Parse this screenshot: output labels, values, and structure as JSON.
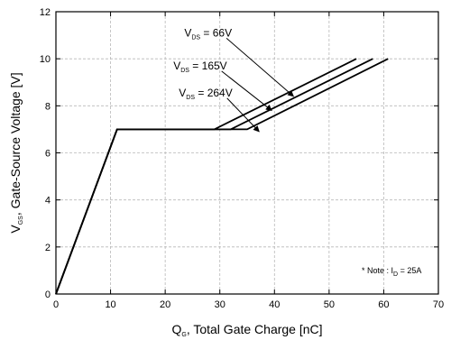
{
  "chart_data": {
    "type": "line",
    "title": "",
    "xlabel": {
      "main": "Q",
      "sub": "G",
      "rest": ", Total Gate Charge [nC]"
    },
    "ylabel": {
      "main": "V",
      "sub": "GS",
      "rest": ", Gate-Source Voltage [V]"
    },
    "xlim": [
      0,
      70
    ],
    "ylim": [
      0,
      12
    ],
    "xticks": [
      0,
      10,
      20,
      30,
      40,
      50,
      60,
      70
    ],
    "yticks": [
      0,
      2,
      4,
      6,
      8,
      10,
      12
    ],
    "grid": true,
    "series": [
      {
        "name": "VDS = 66V",
        "x": [
          0,
          11.2,
          29,
          55
        ],
        "y": [
          0,
          7,
          7,
          10
        ]
      },
      {
        "name": "VDS = 165V",
        "x": [
          0,
          11.2,
          32,
          58
        ],
        "y": [
          0,
          7,
          7,
          10
        ]
      },
      {
        "name": "VDS = 264V",
        "x": [
          0,
          11.2,
          35,
          60.8
        ],
        "y": [
          0,
          7,
          7,
          10
        ]
      }
    ],
    "annotations": [
      {
        "main": "V",
        "sub": "DS",
        "rest": " = 66V",
        "x": 23.5,
        "y": 10.95,
        "arrow_to": [
          43.5,
          8.4
        ]
      },
      {
        "main": "V",
        "sub": "DS",
        "rest": " = 165V",
        "x": 21.5,
        "y": 9.55,
        "arrow_to": [
          39.5,
          7.8
        ]
      },
      {
        "main": "V",
        "sub": "DS",
        "rest": " = 264V",
        "x": 22.5,
        "y": 8.4,
        "arrow_to": [
          37.2,
          6.9
        ]
      }
    ],
    "note": {
      "prefix": "* Note : I",
      "sub": "D",
      "suffix": " = 25A"
    }
  }
}
